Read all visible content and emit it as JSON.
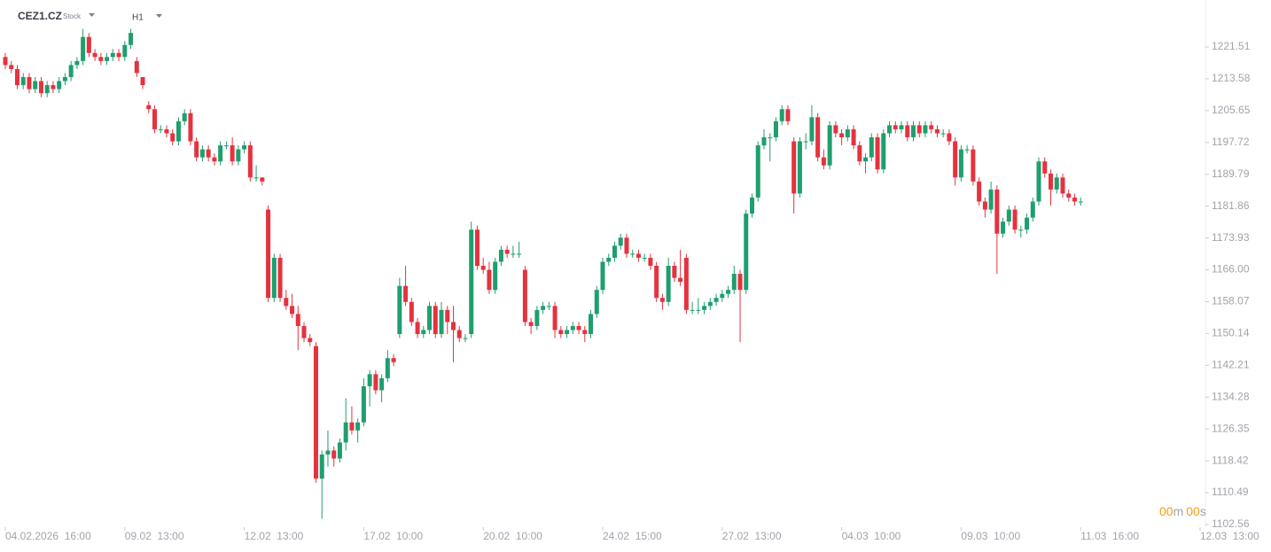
{
  "header": {
    "symbol": "CEZ1.CZ",
    "kind": "Stock",
    "timeframe": "H1"
  },
  "timer": {
    "minutes": "00",
    "minutes_unit": "m",
    "seconds": "00",
    "seconds_unit": "s"
  },
  "chart_data": {
    "type": "candlestick",
    "up_color": "#1f9e6e",
    "down_color": "#e5323f",
    "ylim": [
      1101.9,
      1233.2
    ],
    "yticks": [
      1221.51,
      1213.58,
      1205.65,
      1197.72,
      1189.79,
      1181.86,
      1173.93,
      {
        "value": 1166,
        "label": "1166.00"
      },
      1158.07,
      1150.14,
      1142.21,
      1134.28,
      1126.35,
      1118.42,
      1110.49,
      1102.56
    ],
    "xticks": [
      {
        "value": 0,
        "label": "04.02.2026  16:00"
      },
      {
        "value": 20,
        "label": "09.02  13:00"
      },
      {
        "value": 40,
        "label": "12.02  13:00"
      },
      {
        "value": 60,
        "label": "17.02  10:00"
      },
      {
        "value": 80,
        "label": "20.02  10:00"
      },
      {
        "value": 100,
        "label": "24.02  15:00"
      },
      {
        "value": 120,
        "label": "27.02  13:00"
      },
      {
        "value": 140,
        "label": "04.03  10:00"
      },
      {
        "value": 160,
        "label": "09.03  10:00"
      },
      {
        "value": 180,
        "label": "11.03  16:00"
      },
      {
        "value": 200,
        "label": "12.03  13:00"
      }
    ],
    "ohlc": [
      [
        1219,
        1220,
        1216,
        1217
      ],
      [
        1217,
        1218,
        1215,
        1216
      ],
      [
        1216,
        1217,
        1211,
        1212
      ],
      [
        1212,
        1215,
        1211,
        1214
      ],
      [
        1214,
        1215,
        1210,
        1211
      ],
      [
        1211,
        1214,
        1210,
        1213
      ],
      [
        1213,
        1214,
        1209,
        1210
      ],
      [
        1210,
        1213,
        1209,
        1212
      ],
      [
        1212,
        1213,
        1210,
        1211
      ],
      [
        1211,
        1214,
        1210,
        1213
      ],
      [
        1213,
        1215,
        1212,
        1214
      ],
      [
        1214,
        1218,
        1213,
        1217
      ],
      [
        1217,
        1219,
        1216,
        1218
      ],
      [
        1218,
        1226,
        1217,
        1224
      ],
      [
        1224,
        1225,
        1219,
        1220
      ],
      [
        1220,
        1221,
        1218,
        1219
      ],
      [
        1219,
        1220,
        1217,
        1218
      ],
      [
        1218,
        1220,
        1217,
        1219
      ],
      [
        1219,
        1221,
        1218,
        1220
      ],
      [
        1220,
        1221,
        1218,
        1219
      ],
      [
        1219,
        1223,
        1218,
        1222
      ],
      [
        1222,
        1226,
        1221,
        1225
      ],
      [
        1218,
        1219,
        1214,
        1215
      ],
      [
        1214,
        1214,
        1211,
        1212
      ],
      [
        1207,
        1208,
        1205,
        1206
      ],
      [
        1206,
        1207,
        1200,
        1201
      ],
      [
        1201,
        1202,
        1200,
        1201
      ],
      [
        1201,
        1202,
        1199,
        1200
      ],
      [
        1200,
        1201,
        1197,
        1198
      ],
      [
        1198,
        1204,
        1197,
        1203
      ],
      [
        1203,
        1206,
        1202,
        1205
      ],
      [
        1205,
        1206,
        1197,
        1198
      ],
      [
        1198,
        1199,
        1193,
        1194
      ],
      [
        1194,
        1197,
        1193,
        1196
      ],
      [
        1196,
        1197,
        1193,
        1194
      ],
      [
        1194,
        1195,
        1192,
        1193
      ],
      [
        1193,
        1198,
        1192,
        1197
      ],
      [
        1197,
        1198,
        1196,
        1197
      ],
      [
        1197,
        1199,
        1192,
        1193
      ],
      [
        1193,
        1197,
        1192,
        1196
      ],
      [
        1196,
        1198,
        1195,
        1197
      ],
      [
        1197,
        1198,
        1188,
        1189
      ],
      [
        1189,
        1192,
        1188,
        1189
      ],
      [
        1189,
        1189,
        1187,
        1188
      ],
      [
        1181,
        1182,
        1158,
        1159
      ],
      [
        1159,
        1170,
        1158,
        1169
      ],
      [
        1169,
        1170,
        1158,
        1159
      ],
      [
        1159,
        1161,
        1156,
        1157
      ],
      [
        1157,
        1160,
        1154,
        1155
      ],
      [
        1155,
        1157,
        1146,
        1152
      ],
      [
        1152,
        1153,
        1148,
        1149
      ],
      [
        1149,
        1150,
        1147,
        1148
      ],
      [
        1147,
        1148,
        1113,
        1114
      ],
      [
        1114,
        1121,
        1104,
        1120
      ],
      [
        1120,
        1126,
        1117,
        1121
      ],
      [
        1121,
        1122,
        1117,
        1119
      ],
      [
        1119,
        1124,
        1118,
        1123
      ],
      [
        1123,
        1134,
        1121,
        1128
      ],
      [
        1128,
        1132,
        1125,
        1126
      ],
      [
        1126,
        1129,
        1123,
        1128
      ],
      [
        1128,
        1139,
        1127,
        1137
      ],
      [
        1137,
        1141,
        1132,
        1140
      ],
      [
        1140,
        1141,
        1135,
        1136
      ],
      [
        1136,
        1140,
        1133,
        1139
      ],
      [
        1139,
        1146,
        1138,
        1144
      ],
      [
        1144,
        1145,
        1142,
        1143
      ],
      [
        1150,
        1164,
        1149,
        1162
      ],
      [
        1162,
        1167,
        1157,
        1158
      ],
      [
        1158,
        1159,
        1152,
        1153
      ],
      [
        1153,
        1154,
        1149,
        1150
      ],
      [
        1150,
        1152,
        1149,
        1151
      ],
      [
        1151,
        1158,
        1150,
        1157
      ],
      [
        1157,
        1158,
        1149,
        1150
      ],
      [
        1150,
        1158,
        1149,
        1156
      ],
      [
        1156,
        1157,
        1150,
        1153
      ],
      [
        1153,
        1157,
        1143,
        1151
      ],
      [
        1151,
        1152,
        1148,
        1149
      ],
      [
        1149,
        1150,
        1148,
        1149
      ],
      [
        1150,
        1178,
        1149,
        1176
      ],
      [
        1176,
        1177,
        1166,
        1167
      ],
      [
        1167,
        1169,
        1165,
        1166
      ],
      [
        1166,
        1168,
        1160,
        1161
      ],
      [
        1161,
        1169,
        1160,
        1168
      ],
      [
        1168,
        1172,
        1167,
        1171
      ],
      [
        1171,
        1172,
        1169,
        1170
      ],
      [
        1170,
        1172,
        1169,
        1170
      ],
      [
        1170,
        1173,
        1169,
        1170
      ],
      [
        1166,
        1167,
        1152,
        1153
      ],
      [
        1153,
        1154,
        1150,
        1152
      ],
      [
        1152,
        1157,
        1151,
        1156
      ],
      [
        1156,
        1158,
        1155,
        1157
      ],
      [
        1157,
        1158,
        1156,
        1157
      ],
      [
        1157,
        1158,
        1149,
        1151
      ],
      [
        1151,
        1152,
        1149,
        1150
      ],
      [
        1150,
        1152,
        1149,
        1151
      ],
      [
        1151,
        1153,
        1150,
        1152
      ],
      [
        1152,
        1153,
        1150,
        1151
      ],
      [
        1151,
        1152,
        1148,
        1150
      ],
      [
        1150,
        1156,
        1149,
        1155
      ],
      [
        1155,
        1162,
        1154,
        1161
      ],
      [
        1161,
        1169,
        1160,
        1168
      ],
      [
        1168,
        1170,
        1167,
        1169
      ],
      [
        1169,
        1173,
        1168,
        1172
      ],
      [
        1172,
        1175,
        1171,
        1174
      ],
      [
        1174,
        1175,
        1169,
        1170
      ],
      [
        1170,
        1171,
        1169,
        1170
      ],
      [
        1170,
        1171,
        1168,
        1169
      ],
      [
        1169,
        1170,
        1168,
        1169
      ],
      [
        1169,
        1170,
        1166,
        1167
      ],
      [
        1167,
        1168,
        1158,
        1159
      ],
      [
        1159,
        1160,
        1156,
        1158
      ],
      [
        1158,
        1169,
        1157,
        1167
      ],
      [
        1167,
        1168,
        1163,
        1164
      ],
      [
        1164,
        1171,
        1162,
        1163
      ],
      [
        1169,
        1170,
        1155,
        1156
      ],
      [
        1156,
        1158,
        1155,
        1156
      ],
      [
        1156,
        1159,
        1155,
        1156
      ],
      [
        1156,
        1158,
        1155,
        1157
      ],
      [
        1157,
        1159,
        1156,
        1158
      ],
      [
        1158,
        1160,
        1157,
        1159
      ],
      [
        1159,
        1161,
        1158,
        1160
      ],
      [
        1160,
        1162,
        1159,
        1161
      ],
      [
        1161,
        1167,
        1160,
        1165
      ],
      [
        1165,
        1166,
        1148,
        1161
      ],
      [
        1161,
        1181,
        1160,
        1180
      ],
      [
        1180,
        1185,
        1179,
        1184
      ],
      [
        1184,
        1198,
        1183,
        1197
      ],
      [
        1197,
        1201,
        1196,
        1199
      ],
      [
        1199,
        1200,
        1193,
        1199
      ],
      [
        1199,
        1204,
        1198,
        1203
      ],
      [
        1203,
        1207,
        1202,
        1206
      ],
      [
        1206,
        1207,
        1202,
        1203
      ],
      [
        1198,
        1199,
        1180,
        1185
      ],
      [
        1185,
        1199,
        1184,
        1198
      ],
      [
        1198,
        1200,
        1196,
        1198
      ],
      [
        1198,
        1207,
        1197,
        1204
      ],
      [
        1204,
        1205,
        1193,
        1194
      ],
      [
        1194,
        1196,
        1191,
        1192
      ],
      [
        1192,
        1203,
        1191,
        1202
      ],
      [
        1202,
        1203,
        1199,
        1200
      ],
      [
        1200,
        1201,
        1197,
        1199
      ],
      [
        1199,
        1202,
        1198,
        1201
      ],
      [
        1201,
        1202,
        1196,
        1197
      ],
      [
        1197,
        1198,
        1192,
        1193
      ],
      [
        1193,
        1195,
        1190,
        1194
      ],
      [
        1194,
        1200,
        1193,
        1199
      ],
      [
        1199,
        1200,
        1190,
        1191
      ],
      [
        1191,
        1201,
        1190,
        1200
      ],
      [
        1200,
        1203,
        1199,
        1202
      ],
      [
        1202,
        1203,
        1200,
        1201
      ],
      [
        1201,
        1203,
        1200,
        1202
      ],
      [
        1202,
        1203,
        1198,
        1199
      ],
      [
        1199,
        1203,
        1198,
        1202
      ],
      [
        1202,
        1203,
        1199,
        1200
      ],
      [
        1200,
        1203,
        1199,
        1202
      ],
      [
        1202,
        1203,
        1200,
        1201
      ],
      [
        1201,
        1202,
        1199,
        1200
      ],
      [
        1200,
        1201,
        1199,
        1200
      ],
      [
        1200,
        1201,
        1197,
        1198
      ],
      [
        1198,
        1199,
        1187,
        1189
      ],
      [
        1189,
        1197,
        1188,
        1196
      ],
      [
        1196,
        1197,
        1195,
        1196
      ],
      [
        1196,
        1197,
        1187,
        1188
      ],
      [
        1188,
        1189,
        1182,
        1183
      ],
      [
        1183,
        1184,
        1179,
        1181
      ],
      [
        1181,
        1188,
        1180,
        1186
      ],
      [
        1186,
        1187,
        1165,
        1175
      ],
      [
        1175,
        1179,
        1174,
        1178
      ],
      [
        1178,
        1182,
        1177,
        1181
      ],
      [
        1181,
        1182,
        1175,
        1176
      ],
      [
        1176,
        1177,
        1174,
        1176
      ],
      [
        1176,
        1180,
        1175,
        1179
      ],
      [
        1179,
        1184,
        1178,
        1183
      ],
      [
        1183,
        1194,
        1182,
        1193
      ],
      [
        1193,
        1194,
        1189,
        1190
      ],
      [
        1190,
        1191,
        1182,
        1186
      ],
      [
        1186,
        1190,
        1185,
        1189
      ],
      [
        1189,
        1190,
        1184,
        1185
      ],
      [
        1185,
        1186,
        1183,
        1184
      ],
      [
        1184,
        1185,
        1182,
        1183
      ],
      [
        1183,
        1184,
        1182,
        1183
      ]
    ]
  }
}
